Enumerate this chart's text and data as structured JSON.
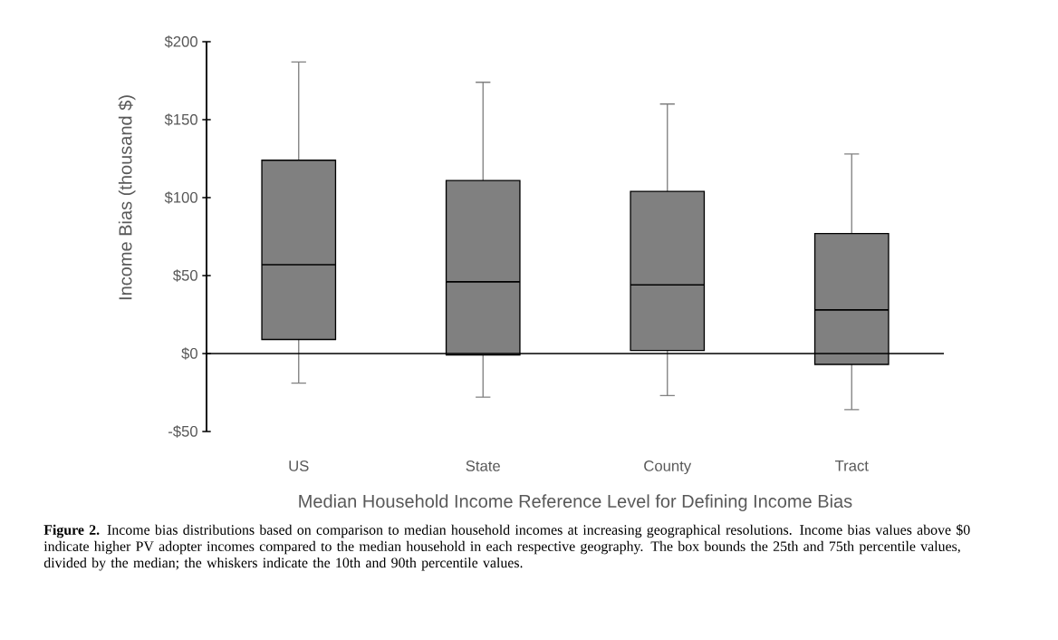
{
  "chart_data": {
    "type": "box",
    "xlabel": "Median Household Income Reference Level for Defining Income Bias",
    "ylabel": "Income Bias (thousand $)",
    "categories": [
      "US",
      "State",
      "County",
      "Tract"
    ],
    "color": "#808080",
    "boxes": [
      {
        "low": -19,
        "q1": 9,
        "median": 57,
        "q3": 124,
        "high": 187
      },
      {
        "low": -28,
        "q1": -1,
        "median": 46,
        "q3": 111,
        "high": 174
      },
      {
        "low": -27,
        "q1": 2,
        "median": 44,
        "q3": 104,
        "high": 160
      },
      {
        "low": -36,
        "q1": -7,
        "median": 28,
        "q3": 77,
        "high": 128
      }
    ],
    "ylim": [
      -50,
      200
    ],
    "yticks": [
      {
        "value": -50,
        "label": "-$50"
      },
      {
        "value": 0,
        "label": "$0"
      },
      {
        "value": 50,
        "label": "$50"
      },
      {
        "value": 100,
        "label": "$100"
      },
      {
        "value": 150,
        "label": "$150"
      },
      {
        "value": 200,
        "label": "$200"
      }
    ],
    "annotations": [
      "**Figure 2.** Income bias distributions based on comparison to median household incomes at increasing geographical resolutions. Income bias values above $0 indicate higher PV adopter incomes compared to the median household in each respective geography. The box bounds the 25th and 75th percentile values, divided by the median; the whiskers indicate the 10th and 90th percentile values."
    ]
  }
}
